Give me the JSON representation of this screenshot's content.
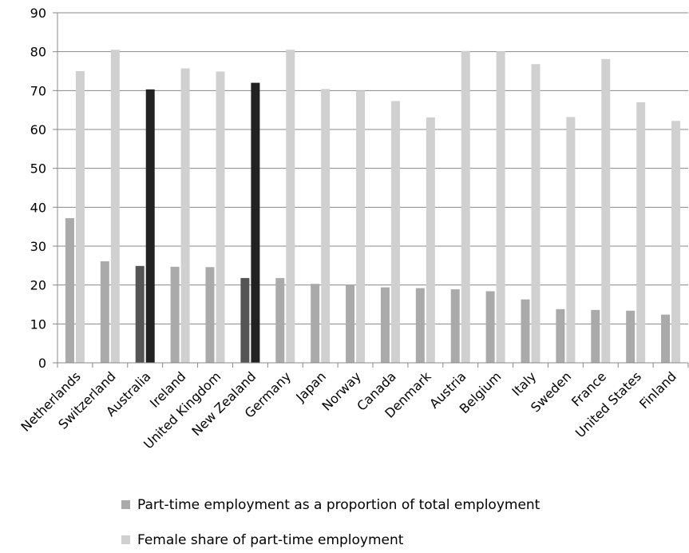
{
  "chart_data": {
    "type": "bar",
    "title": "",
    "xlabel": "",
    "ylabel": "",
    "ylim": [
      0,
      90
    ],
    "yticks": [
      0,
      10,
      20,
      30,
      40,
      50,
      60,
      70,
      80,
      90
    ],
    "grid": "horizontal",
    "legend_position": "bottom",
    "categories": [
      "Netherlands",
      "Switzerland",
      "Australia",
      "Ireland",
      "United Kingdom",
      "New Zealand",
      "Germany",
      "Japan",
      "Norway",
      "Canada",
      "Denmark",
      "Austria",
      "Belgium",
      "Italy",
      "Sweden",
      "France",
      "United States",
      "Finland"
    ],
    "highlighted_categories": [
      "Australia",
      "New Zealand"
    ],
    "series": [
      {
        "name": "Part-time employment as a proportion of total employment",
        "color": "#aaaaaa",
        "highlight_color": "#555555",
        "values": [
          37.2,
          26.1,
          24.9,
          24.7,
          24.6,
          21.8,
          21.8,
          20.3,
          20.0,
          19.4,
          19.2,
          18.9,
          18.4,
          16.3,
          13.8,
          13.6,
          13.4,
          12.4
        ]
      },
      {
        "name": "Female share of part-time employment",
        "color": "#d0d0d0",
        "highlight_color": "#222222",
        "values": [
          75.0,
          80.5,
          70.3,
          75.7,
          74.9,
          72.0,
          80.5,
          70.4,
          70.0,
          67.3,
          63.1,
          80.2,
          80.1,
          76.8,
          63.2,
          78.1,
          67.0,
          62.2
        ]
      }
    ]
  }
}
